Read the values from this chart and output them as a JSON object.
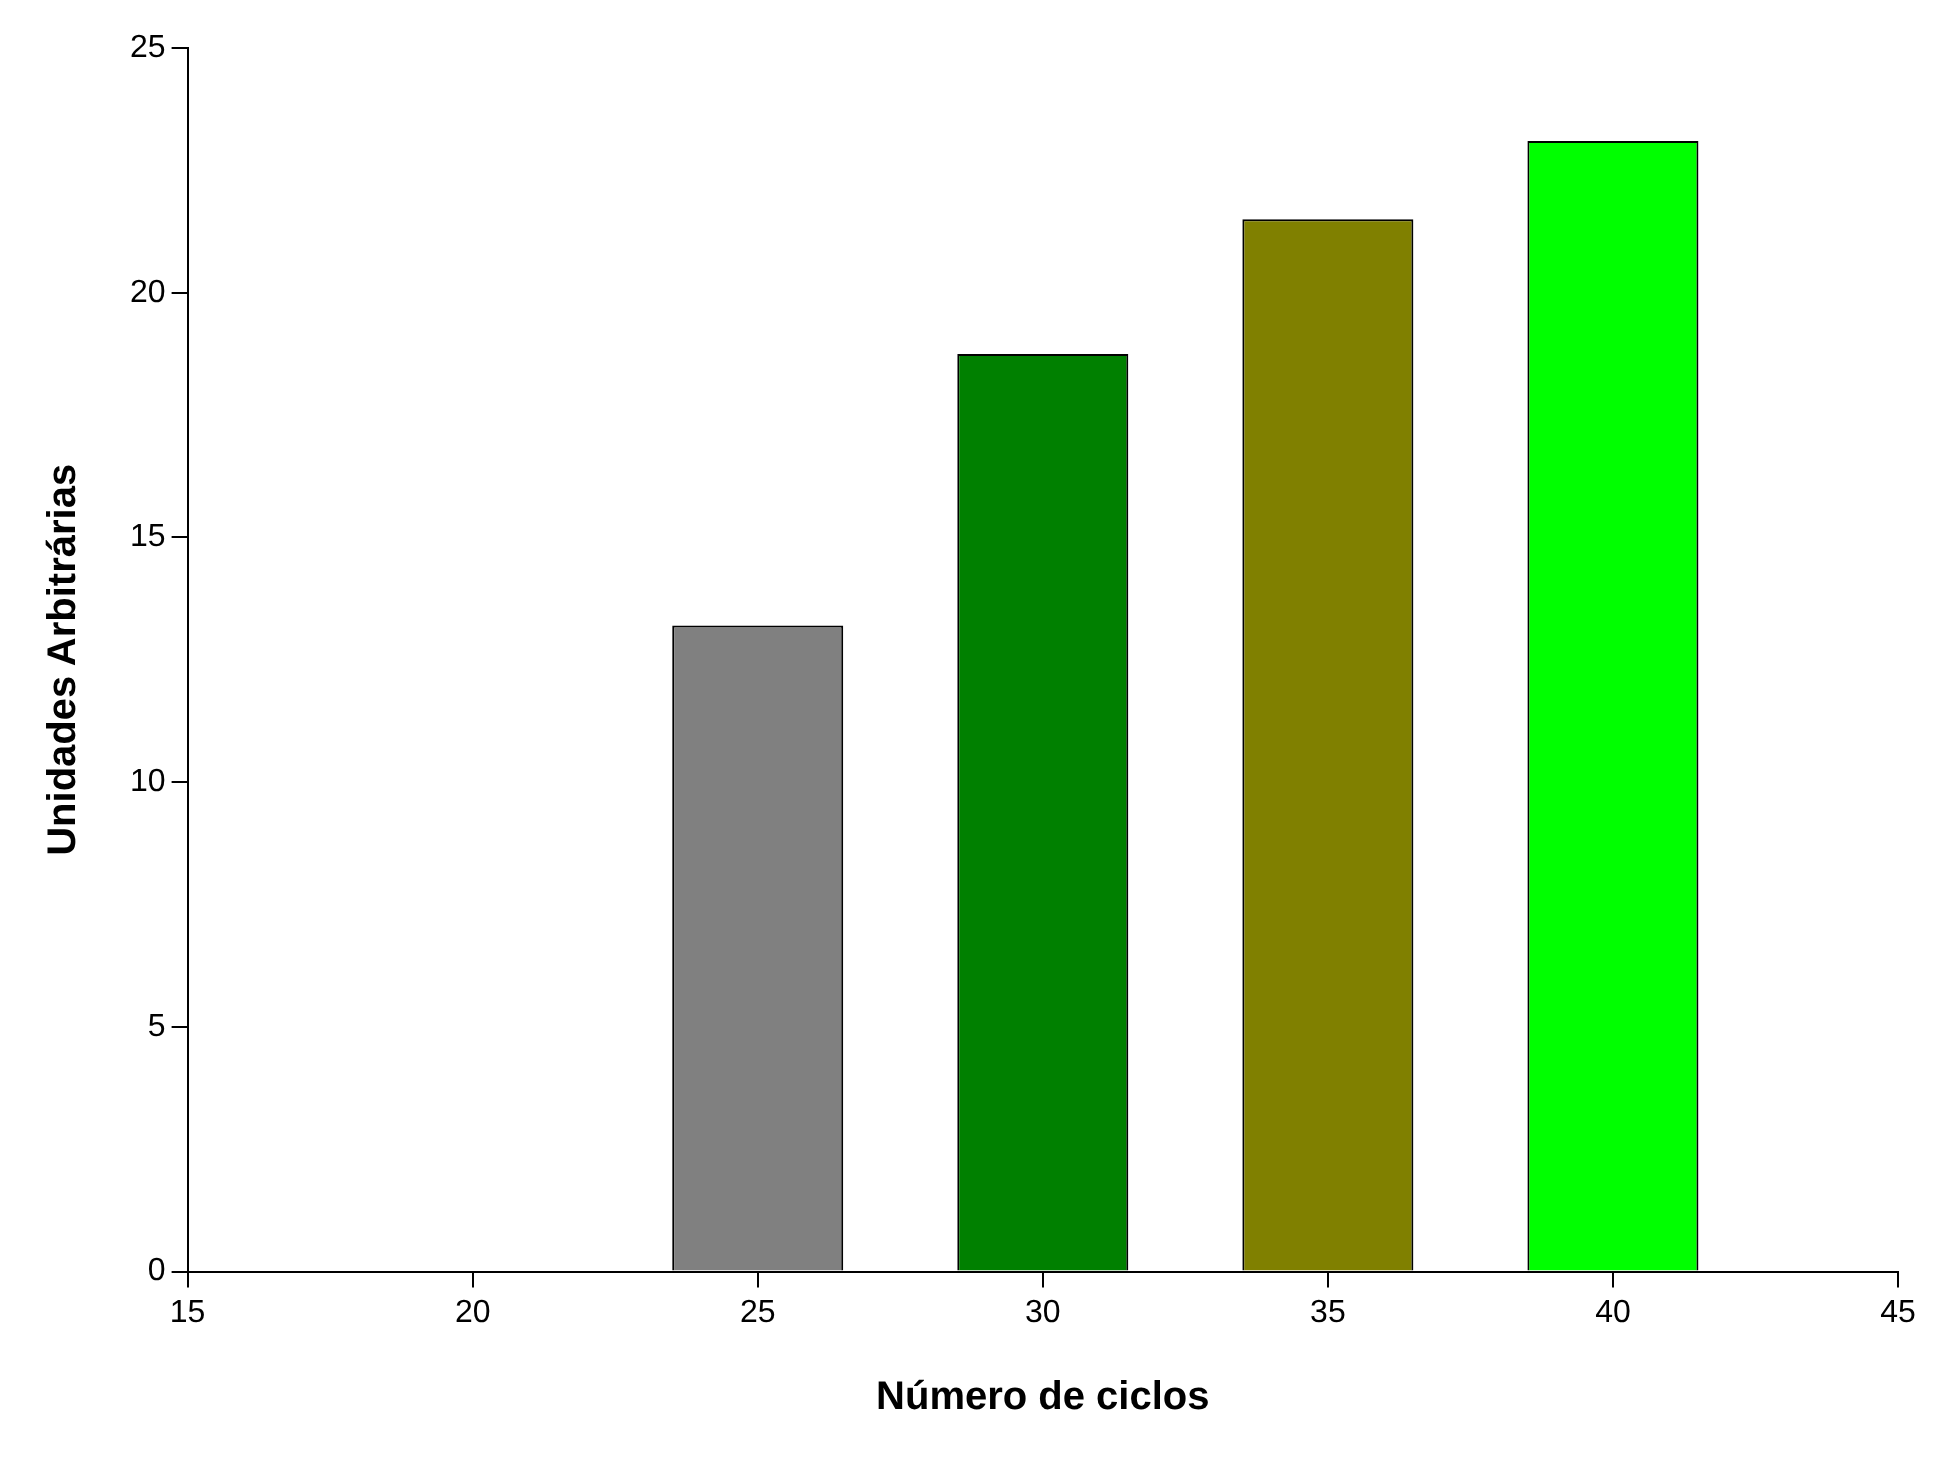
{
  "chart_data": {
    "type": "bar",
    "xlabel": "Número de ciclos",
    "ylabel": "Unidades Arbitrárias",
    "x": [
      25,
      30,
      35,
      40
    ],
    "values": [
      13.2,
      18.75,
      21.5,
      23.1
    ],
    "colors": [
      "#808080",
      "#008000",
      "#808000",
      "#00ff00"
    ],
    "xlim": [
      15,
      45
    ],
    "xticks": [
      15,
      20,
      25,
      30,
      35,
      40,
      45
    ],
    "ylim": [
      0,
      25
    ],
    "yticks": [
      0,
      5,
      10,
      15,
      20,
      25
    ],
    "grid": false,
    "legend": false
  }
}
